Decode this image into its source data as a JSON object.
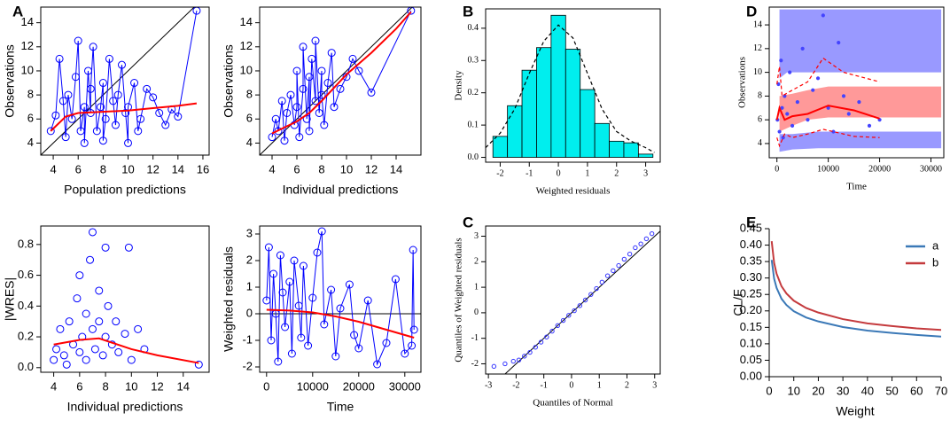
{
  "panel_labels": [
    "A",
    "B",
    "C",
    "D",
    "E"
  ],
  "chart_data": [
    {
      "type": "scatter",
      "xlabel": "Population predictions",
      "ylabel": "Observations",
      "xlim": [
        3,
        16.5
      ],
      "xticks": [
        4,
        6,
        8,
        10,
        12,
        14,
        16
      ],
      "ylim": [
        3,
        15.3
      ],
      "yticks": [
        4,
        6,
        8,
        10,
        12,
        14
      ],
      "identity_line": true,
      "series": [
        {
          "color": "#0000ff",
          "mode": "markers+lines",
          "marker": "open-circle",
          "x": [
            3.8,
            4.2,
            4.5,
            4.8,
            5,
            5.2,
            5.5,
            5.8,
            6,
            6.2,
            6.5,
            6.5,
            6.8,
            7,
            7,
            7.2,
            7.5,
            7.8,
            8,
            8,
            8.2,
            8.5,
            8.8,
            9,
            9.2,
            9.5,
            9.8,
            10,
            10,
            10.5,
            10.8,
            11,
            11.5,
            12,
            12.5,
            13,
            13.5,
            14,
            15.5
          ],
          "values": [
            5,
            6.3,
            11,
            7.5,
            4.5,
            8,
            6,
            9.5,
            12.5,
            5,
            7,
            4,
            10,
            6.5,
            8.5,
            12,
            5,
            7,
            9,
            4.2,
            6,
            11,
            7.5,
            5.5,
            8,
            10.5,
            6.5,
            4,
            7,
            9,
            5,
            6,
            8.5,
            7.8,
            6.5,
            5.5,
            6.8,
            6.2,
            15
          ]
        },
        {
          "color": "#ff0000",
          "mode": "line",
          "x": [
            3.8,
            5,
            6,
            8,
            10,
            12,
            14,
            15.5
          ],
          "values": [
            5,
            6.2,
            6.5,
            6.6,
            6.7,
            6.9,
            7.1,
            7.3
          ]
        }
      ]
    },
    {
      "type": "scatter",
      "xlabel": "Individual predictions",
      "ylabel": "Observations",
      "xlim": [
        3,
        16
      ],
      "xticks": [
        4,
        6,
        8,
        10,
        12,
        14
      ],
      "ylim": [
        3,
        15.3
      ],
      "yticks": [
        4,
        6,
        8,
        10,
        12,
        14
      ],
      "identity_line": true,
      "series": [
        {
          "color": "#0000ff",
          "mode": "markers+lines",
          "marker": "open-circle",
          "x": [
            4,
            4.3,
            4.5,
            4.8,
            5,
            5.2,
            5.5,
            5.8,
            6,
            6,
            6.2,
            6.5,
            6.5,
            6.8,
            7,
            7,
            7.2,
            7.5,
            7.5,
            7.8,
            8,
            8,
            8.2,
            8.5,
            8.8,
            9,
            9.5,
            10,
            10.5,
            11,
            12,
            15.2
          ],
          "values": [
            4.5,
            6,
            5,
            7.5,
            4.2,
            6.5,
            8,
            5.5,
            7,
            10,
            4.5,
            8.5,
            12,
            6,
            9.5,
            5,
            11,
            7.5,
            12.5,
            6.5,
            10,
            8,
            5.5,
            9,
            11.5,
            7,
            8.5,
            9.5,
            11,
            10,
            8.2,
            15
          ]
        },
        {
          "color": "#ff0000",
          "mode": "line",
          "x": [
            4,
            5,
            6,
            7,
            8,
            9,
            10,
            12,
            14,
            15.2
          ],
          "values": [
            4.8,
            5.3,
            5.8,
            6.5,
            7.5,
            8.6,
            9.7,
            11.5,
            13.5,
            14.9
          ]
        }
      ]
    },
    {
      "type": "scatter",
      "xlabel": "Individual predictions",
      "ylabel": "|WRES|",
      "xlim": [
        3,
        16
      ],
      "xticks": [
        4,
        6,
        8,
        10,
        12,
        14
      ],
      "ylim": [
        -0.03,
        0.92
      ],
      "yticks": [
        {
          "value": 0,
          "label": "0.0"
        },
        0.2,
        0.4,
        0.6,
        0.8
      ],
      "series": [
        {
          "color": "#0000ff",
          "mode": "markers",
          "marker": "open-circle",
          "x": [
            4,
            4.2,
            4.5,
            4.8,
            5,
            5.2,
            5.5,
            5.8,
            6,
            6,
            6.2,
            6.5,
            6.5,
            6.8,
            7,
            7,
            7.2,
            7.5,
            7.5,
            7.8,
            8,
            8,
            8.2,
            8.5,
            8.8,
            9,
            9.5,
            9.8,
            10,
            10.5,
            11,
            15.2
          ],
          "values": [
            0.05,
            0.12,
            0.25,
            0.08,
            0.02,
            0.3,
            0.15,
            0.45,
            0.1,
            0.6,
            0.2,
            0.35,
            0.05,
            0.7,
            0.25,
            0.88,
            0.12,
            0.5,
            0.3,
            0.08,
            0.2,
            0.78,
            0.4,
            0.15,
            0.3,
            0.1,
            0.22,
            0.78,
            0.05,
            0.25,
            0.12,
            0.02
          ]
        },
        {
          "color": "#ff0000",
          "mode": "line",
          "x": [
            4,
            6,
            7.5,
            10,
            12,
            15.2
          ],
          "values": [
            0.15,
            0.18,
            0.19,
            0.12,
            0.08,
            0.03
          ]
        }
      ]
    },
    {
      "type": "scatter",
      "xlabel": "Time",
      "ylabel": "Weighted residuals",
      "xlim": [
        -1500,
        33500
      ],
      "xticks": [
        0,
        10000,
        20000,
        30000
      ],
      "ylim": [
        -2.2,
        3.3
      ],
      "yticks": [
        -2,
        -1,
        0,
        1,
        2,
        3
      ],
      "hline": 0,
      "series": [
        {
          "color": "#0000ff",
          "mode": "markers+lines",
          "marker": "open-circle",
          "x": [
            0,
            500,
            1000,
            1500,
            2000,
            2500,
            3000,
            3500,
            4000,
            5000,
            5500,
            6000,
            7000,
            7500,
            8000,
            9000,
            10000,
            11000,
            12000,
            12500,
            14000,
            15000,
            16000,
            18000,
            19000,
            20000,
            22000,
            24000,
            26000,
            28000,
            30000,
            31500,
            31800,
            32000
          ],
          "values": [
            0.5,
            2.5,
            -1,
            1.5,
            0,
            -1.8,
            2.2,
            0.8,
            -0.5,
            1.2,
            -1.5,
            2,
            0.3,
            -0.9,
            1.8,
            -1.2,
            0.6,
            2.3,
            3.1,
            -0.4,
            0.9,
            -1.6,
            0.2,
            1.1,
            -0.8,
            -1.3,
            0.5,
            -1.9,
            -1.1,
            1.3,
            -1.5,
            -1.2,
            2.4,
            -0.6
          ]
        },
        {
          "color": "#ff0000",
          "mode": "line",
          "x": [
            0,
            5000,
            10000,
            15000,
            20000,
            25000,
            32000
          ],
          "values": [
            0.15,
            0.12,
            0.05,
            -0.1,
            -0.3,
            -0.55,
            -0.9
          ]
        }
      ]
    },
    {
      "type": "histogram",
      "xlabel": "Weighted residuals",
      "ylabel": "Density",
      "xlim": [
        -2.5,
        3.5
      ],
      "xticks": [
        -2,
        -1,
        0,
        1,
        2,
        3
      ],
      "ylim": [
        -0.015,
        0.46
      ],
      "yticks": [
        {
          "value": 0,
          "label": "0.0"
        },
        0.1,
        0.2,
        0.3,
        0.4
      ],
      "color": "#00eeee",
      "bins": [
        -2.25,
        -1.75,
        -1.25,
        -0.75,
        -0.25,
        0.25,
        0.75,
        1.25,
        1.75,
        2.25,
        2.75,
        3.25
      ],
      "values": [
        0.065,
        0.16,
        0.27,
        0.34,
        0.44,
        0.335,
        0.21,
        0.105,
        0.05,
        0.045,
        0.01
      ],
      "series": [
        {
          "color": "#000000",
          "mode": "dashed",
          "x": [
            -2.5,
            -2,
            -1.5,
            -1,
            -0.5,
            0,
            0.5,
            1,
            1.5,
            2,
            2.5,
            3,
            3.3
          ],
          "values": [
            0.03,
            0.075,
            0.15,
            0.26,
            0.36,
            0.41,
            0.37,
            0.26,
            0.15,
            0.08,
            0.05,
            0.03,
            0.015
          ]
        }
      ]
    },
    {
      "type": "scatter",
      "xlabel": "Quantiles of Normal",
      "ylabel": "Quantiles of Weighted residuals",
      "xlim": [
        -3.1,
        3.2
      ],
      "xticks": [
        -3,
        -2,
        -1,
        0,
        1,
        2,
        3
      ],
      "ylim": [
        -2.4,
        3.4
      ],
      "yticks": [
        -2,
        -1,
        0,
        1,
        2,
        3
      ],
      "identity_line": true,
      "series": [
        {
          "color": "#3333ff",
          "mode": "markers",
          "marker": "small-circle",
          "x": [
            -2.8,
            -2.4,
            -2.1,
            -1.9,
            -1.7,
            -1.5,
            -1.3,
            -1.1,
            -0.9,
            -0.7,
            -0.5,
            -0.3,
            -0.1,
            0.1,
            0.3,
            0.5,
            0.7,
            0.9,
            1.1,
            1.3,
            1.5,
            1.7,
            1.9,
            2.1,
            2.3,
            2.5,
            2.7,
            2.9
          ],
          "values": [
            -2.1,
            -2,
            -1.9,
            -1.85,
            -1.7,
            -1.55,
            -1.35,
            -1.15,
            -0.95,
            -0.72,
            -0.5,
            -0.3,
            -0.1,
            0.08,
            0.28,
            0.5,
            0.72,
            0.95,
            1.2,
            1.45,
            1.65,
            1.85,
            2.1,
            2.3,
            2.55,
            2.7,
            2.9,
            3.1
          ]
        }
      ]
    },
    {
      "type": "scatter",
      "xlabel": "Time",
      "ylabel": "Observations",
      "xlim": [
        -1500,
        32500
      ],
      "xticks": [
        0,
        10000,
        20000,
        30000
      ],
      "ylim": [
        2.8,
        15.5
      ],
      "yticks": [
        4,
        6,
        8,
        10,
        12,
        14
      ],
      "series": [
        {
          "color": "#9999ff",
          "mode": "area",
          "x": [
            500,
            2000,
            32000
          ],
          "lower": [
            9.5,
            10,
            10
          ],
          "upper": [
            15.3,
            15.3,
            15.3
          ]
        },
        {
          "color": "#ff9999",
          "mode": "area",
          "x": [
            500,
            3000,
            6000,
            10000,
            32000
          ],
          "lower": [
            5,
            5.5,
            6,
            6.2,
            6.2
          ],
          "upper": [
            8,
            8.2,
            8.5,
            8.8,
            8.8
          ]
        },
        {
          "color": "#9999ff",
          "mode": "area",
          "x": [
            500,
            3000,
            8000,
            32000
          ],
          "lower": [
            3.3,
            3.5,
            3.6,
            3.6
          ],
          "upper": [
            4.8,
            4.8,
            5,
            5
          ]
        },
        {
          "color": "#4444ff",
          "mode": "markers",
          "marker": "dot",
          "x": [
            100,
            300,
            500,
            800,
            1000,
            1200,
            1500,
            2000,
            2500,
            3000,
            4000,
            5000,
            6000,
            7000,
            8000,
            9000,
            10000,
            11000,
            12000,
            13000,
            14000,
            16000,
            18000,
            20000
          ],
          "values": [
            6,
            9,
            5,
            11,
            7,
            4.5,
            8,
            6.5,
            10,
            5.5,
            7.5,
            12,
            6,
            8.5,
            9.5,
            14.8,
            7,
            5,
            12.5,
            8,
            6.5,
            7.5,
            5.5,
            6
          ]
        },
        {
          "color": "#ff0000",
          "mode": "line",
          "x": [
            0,
            500,
            1500,
            3000,
            6000,
            10000,
            15000,
            20000
          ],
          "values": [
            6,
            7,
            6,
            6.3,
            6.5,
            7.2,
            6.8,
            6.1
          ]
        },
        {
          "color": "#ff0000",
          "mode": "dashed",
          "x": [
            0,
            500,
            1000,
            3000,
            6000,
            9000,
            13000,
            20000
          ],
          "values": [
            9,
            10.5,
            8,
            8.5,
            9.2,
            11.2,
            10,
            9.2
          ]
        },
        {
          "color": "#ff0000",
          "mode": "dashed",
          "x": [
            0,
            500,
            1500,
            3000,
            6000,
            9000,
            15000,
            20000
          ],
          "values": [
            4.5,
            3.8,
            4.8,
            4.5,
            4.8,
            5.2,
            4.6,
            4.5
          ]
        }
      ]
    },
    {
      "type": "line",
      "xlabel": "Weight",
      "ylabel": "CL/F",
      "xlim": [
        0,
        70
      ],
      "xticks": [
        0,
        10,
        20,
        30,
        40,
        50,
        60,
        70
      ],
      "ylim": [
        0,
        0.45
      ],
      "yticks": [
        {
          "value": 0,
          "label": "0.00"
        },
        0.05,
        {
          "value": 0.1,
          "label": "0.10"
        },
        0.15,
        {
          "value": 0.2,
          "label": "0.20"
        },
        0.25,
        {
          "value": 0.3,
          "label": "0.30"
        },
        0.35,
        {
          "value": 0.4,
          "label": "0.40"
        },
        0.45
      ],
      "legend": "upper right",
      "series": [
        {
          "name": "a",
          "color": "#3b79b7",
          "mode": "line",
          "x": [
            1,
            2,
            3,
            5,
            7,
            10,
            15,
            20,
            30,
            40,
            50,
            60,
            70
          ],
          "values": [
            0.355,
            0.298,
            0.27,
            0.237,
            0.218,
            0.199,
            0.18,
            0.168,
            0.151,
            0.14,
            0.133,
            0.127,
            0.122
          ]
        },
        {
          "name": "b",
          "color": "#c43a3d",
          "mode": "line",
          "x": [
            1,
            2,
            3,
            5,
            7,
            10,
            15,
            20,
            30,
            40,
            50,
            60,
            70
          ],
          "values": [
            0.412,
            0.346,
            0.313,
            0.275,
            0.253,
            0.231,
            0.209,
            0.195,
            0.175,
            0.162,
            0.154,
            0.147,
            0.142
          ]
        }
      ]
    }
  ]
}
